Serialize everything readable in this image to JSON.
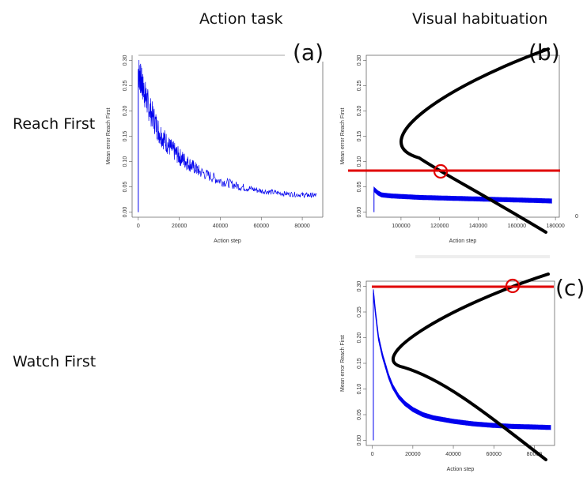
{
  "headers": {
    "action_task": "Action task",
    "visual_habituation": "Visual habituation"
  },
  "rows": {
    "reach_first": "Reach First",
    "watch_first": "Watch First"
  },
  "chart_data": [
    {
      "id": "a",
      "tag": "(a)",
      "type": "line",
      "xlabel": "Action step",
      "ylabel": "Mean error Reach First",
      "xlim": [
        -3000,
        90000
      ],
      "ylim": [
        -0.01,
        0.31
      ],
      "xticks": [
        "0",
        "20000",
        "40000",
        "60000",
        "80000"
      ],
      "xtick_values": [
        0,
        20000,
        40000,
        60000,
        80000
      ],
      "yticks": [
        "0.00",
        "0.05",
        "0.10",
        "0.15",
        "0.20",
        "0.25",
        "0.30"
      ],
      "ytick_values": [
        0,
        0.05,
        0.1,
        0.15,
        0.2,
        0.25,
        0.3
      ],
      "series": [
        {
          "color": "#0000ee",
          "x": [
            0,
            2000,
            5000,
            10000,
            15000,
            20000,
            25000,
            30000,
            40000,
            50000,
            60000,
            70000,
            80000,
            87000
          ],
          "y": [
            0.28,
            0.25,
            0.21,
            0.16,
            0.13,
            0.11,
            0.095,
            0.08,
            0.062,
            0.05,
            0.042,
            0.037,
            0.034,
            0.033
          ],
          "noise": [
            0.035,
            0.03,
            0.03,
            0.025,
            0.02,
            0.018,
            0.015,
            0.012,
            0.01,
            0.008,
            0.006,
            0.005,
            0.005,
            0.005
          ]
        }
      ]
    },
    {
      "id": "b",
      "tag": "(b)",
      "type": "line",
      "xlabel": "Action step",
      "ylabel": "Mean error Reach First",
      "xlim": [
        82000,
        182000
      ],
      "ylim": [
        -0.01,
        0.31
      ],
      "xticks": [
        "100000",
        "120000",
        "140000",
        "160000",
        "180000"
      ],
      "xtick_values": [
        100000,
        120000,
        140000,
        160000,
        180000
      ],
      "yticks": [
        "0.00",
        "0.05",
        "0.10",
        "0.15",
        "0.20",
        "0.25",
        "0.30"
      ],
      "ytick_values": [
        0,
        0.05,
        0.1,
        0.15,
        0.2,
        0.25,
        0.3
      ],
      "series": [
        {
          "color": "#0000ee",
          "x": [
            86000,
            88000,
            90000,
            95000,
            100000,
            110000,
            120000,
            130000,
            140000,
            150000,
            160000,
            170000,
            178000
          ],
          "y": [
            0.045,
            0.038,
            0.034,
            0.032,
            0.031,
            0.029,
            0.028,
            0.027,
            0.026,
            0.025,
            0.024,
            0.023,
            0.022
          ],
          "band": 0.008
        }
      ],
      "side_label": "0"
    },
    {
      "id": "c",
      "tag": "(c)",
      "type": "line",
      "xlabel": "Action step",
      "ylabel": "Mean error Reach First",
      "xlim": [
        -3000,
        90000
      ],
      "ylim": [
        -0.01,
        0.31
      ],
      "xticks": [
        "0",
        "20000",
        "40000",
        "60000",
        "80000"
      ],
      "xtick_values": [
        0,
        20000,
        40000,
        60000,
        80000
      ],
      "yticks": [
        "0.00",
        "0.05",
        "0.10",
        "0.15",
        "0.20",
        "0.25",
        "0.30"
      ],
      "ytick_values": [
        0,
        0.05,
        0.1,
        0.15,
        0.2,
        0.25,
        0.3
      ],
      "series": [
        {
          "color": "#0000ee",
          "x": [
            500,
            1500,
            3000,
            5000,
            8000,
            10000,
            13000,
            16000,
            20000,
            25000,
            30000,
            40000,
            50000,
            60000,
            70000,
            80000,
            88000
          ],
          "y": [
            0.29,
            0.25,
            0.2,
            0.165,
            0.125,
            0.105,
            0.085,
            0.072,
            0.06,
            0.05,
            0.044,
            0.037,
            0.032,
            0.029,
            0.027,
            0.026,
            0.025
          ],
          "band": 0.008
        }
      ]
    }
  ]
}
